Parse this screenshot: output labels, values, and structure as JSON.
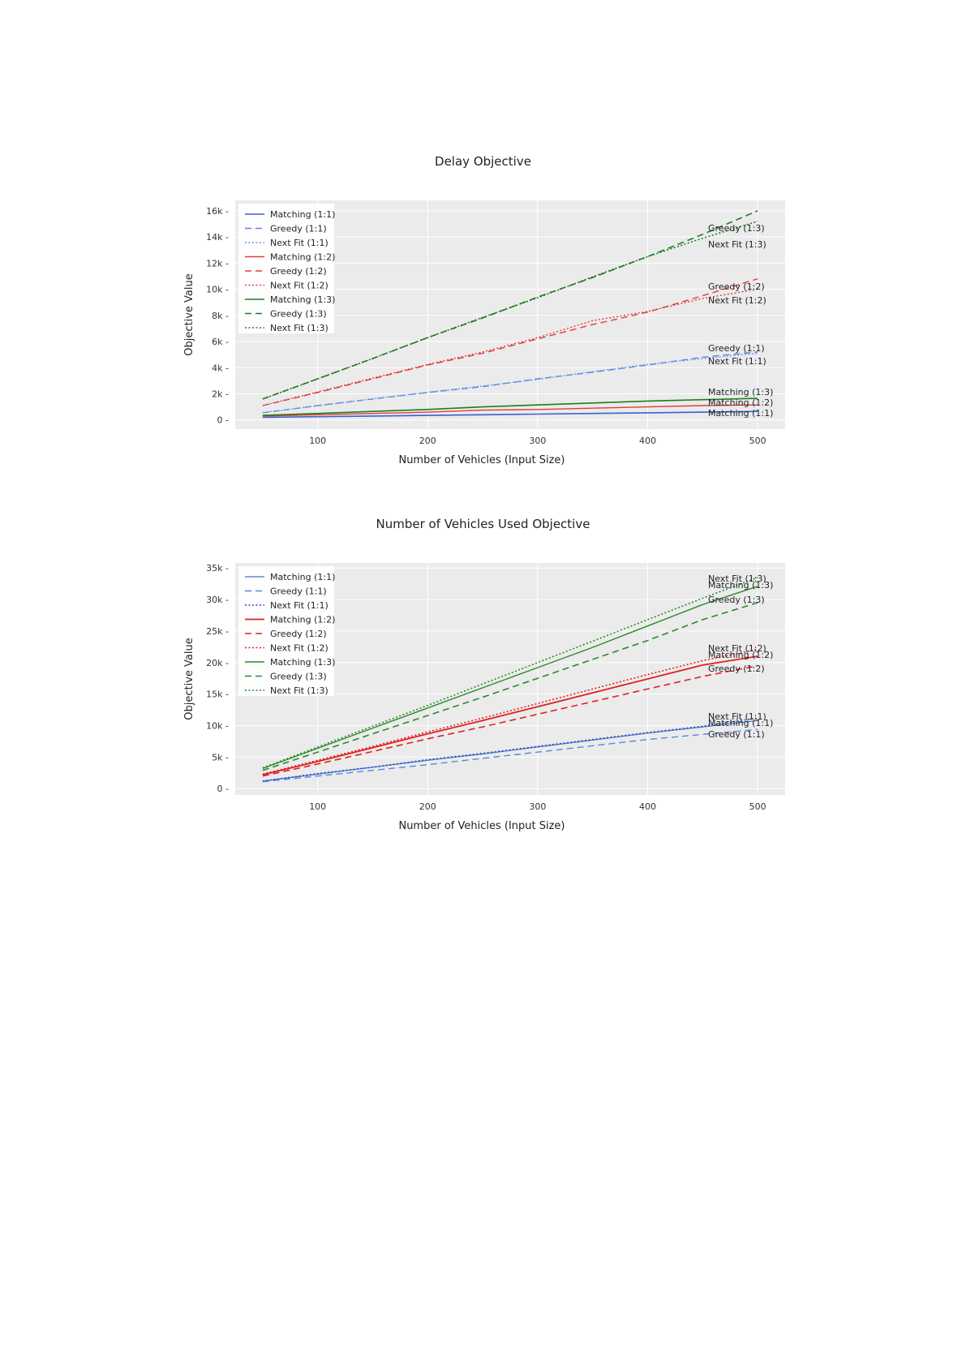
{
  "chart_data": [
    {
      "type": "line",
      "title": "Delay Objective",
      "xlabel": "Number of Vehicles (Input Size)",
      "ylabel": "Objective Value",
      "xlim": [
        25,
        525
      ],
      "ylim": [
        -700,
        16800
      ],
      "xticks": [
        100,
        200,
        300,
        400,
        500
      ],
      "yticks": [
        0,
        2000,
        4000,
        6000,
        8000,
        10000,
        12000,
        14000,
        16000
      ],
      "ytick_labels": [
        "0",
        "2k",
        "4k",
        "6k",
        "8k",
        "10k",
        "12k",
        "14k",
        "16k"
      ],
      "grid": true,
      "legend": "top-left",
      "x": [
        50,
        100,
        150,
        200,
        250,
        300,
        350,
        400,
        450,
        500
      ],
      "series": [
        {
          "name": "Matching (1:1)",
          "color": "#3a5fd6",
          "dash": "solid",
          "width": 1.6,
          "end_label": "Matching (1:1)",
          "values": [
            200,
            250,
            300,
            350,
            400,
            450,
            500,
            550,
            600,
            650
          ]
        },
        {
          "name": "Greedy (1:1)",
          "color": "#5b86e5",
          "dash": "dashed",
          "width": 1.4,
          "end_label": "Greedy (1:1)",
          "values": [
            550,
            1100,
            1600,
            2100,
            2550,
            3150,
            3650,
            4200,
            4800,
            5200
          ]
        },
        {
          "name": "Next Fit (1:1)",
          "color": "#6f94e8",
          "dash": "dotted",
          "width": 1.4,
          "end_label": "Next Fit (1:1)",
          "values": [
            560,
            1080,
            1620,
            2120,
            2600,
            3100,
            3700,
            4250,
            4700,
            5100
          ]
        },
        {
          "name": "Matching (1:2)",
          "color": "#e33b3b",
          "dash": "solid",
          "width": 1.4,
          "end_label": "Matching (1:2)",
          "values": [
            300,
            400,
            500,
            600,
            750,
            800,
            900,
            1000,
            1100,
            1150
          ]
        },
        {
          "name": "Greedy (1:2)",
          "color": "#e33b3b",
          "dash": "dashed",
          "width": 1.4,
          "end_label": "Greedy (1:2)",
          "values": [
            1100,
            2100,
            3150,
            4200,
            5100,
            6200,
            7300,
            8250,
            9500,
            10800
          ]
        },
        {
          "name": "Next Fit (1:2)",
          "color": "#e33b3b",
          "dash": "dotted",
          "width": 1.4,
          "end_label": "Next Fit (1:2)",
          "values": [
            1100,
            2150,
            3200,
            4250,
            5200,
            6300,
            7600,
            8300,
            9300,
            10000
          ]
        },
        {
          "name": "Matching (1:3)",
          "color": "#1e7d1e",
          "dash": "solid",
          "width": 1.6,
          "end_label": "Matching (1:3)",
          "values": [
            350,
            500,
            650,
            800,
            1000,
            1150,
            1300,
            1450,
            1550,
            1650
          ]
        },
        {
          "name": "Greedy (1:3)",
          "color": "#1e7d1e",
          "dash": "dashed",
          "width": 1.6,
          "end_label": "Greedy (1:3)",
          "values": [
            1600,
            3150,
            4700,
            6300,
            7800,
            9400,
            10900,
            12500,
            14200,
            16000
          ]
        },
        {
          "name": "Next Fit (1:3)",
          "color": "#1e7d1e",
          "dash": "dotted",
          "width": 1.6,
          "end_label": "Next Fit (1:3)",
          "values": [
            1600,
            3150,
            4700,
            6300,
            7850,
            9350,
            10950,
            12500,
            13900,
            15200
          ]
        }
      ]
    },
    {
      "type": "line",
      "title": "Number of Vehicles Used Objective",
      "xlabel": "Number of Vehicles (Input Size)",
      "ylabel": "Objective Value",
      "xlim": [
        25,
        525
      ],
      "ylim": [
        -1000,
        35800
      ],
      "xticks": [
        100,
        200,
        300,
        400,
        500
      ],
      "yticks": [
        0,
        5000,
        10000,
        15000,
        20000,
        25000,
        30000,
        35000
      ],
      "ytick_labels": [
        "0",
        "5k",
        "10k",
        "15k",
        "20k",
        "25k",
        "30k",
        "35k"
      ],
      "grid": true,
      "legend": "top-left",
      "x": [
        50,
        100,
        150,
        200,
        250,
        300,
        350,
        400,
        450,
        500
      ],
      "series": [
        {
          "name": "Matching (1:1)",
          "color": "#4a72c4",
          "dash": "solid",
          "width": 1.2,
          "end_label": "Matching (1:1)",
          "values": [
            1200,
            2300,
            3400,
            4500,
            5500,
            6600,
            7700,
            8800,
            9800,
            10800
          ]
        },
        {
          "name": "Greedy (1:1)",
          "color": "#5b86e5",
          "dash": "dashed",
          "width": 1.4,
          "end_label": "Greedy (1:1)",
          "values": [
            1100,
            2000,
            2900,
            3800,
            4800,
            5800,
            6800,
            7800,
            8600,
            9400
          ]
        },
        {
          "name": "Next Fit (1:1)",
          "color": "#2b4fd0",
          "dash": "dotted",
          "width": 1.6,
          "end_label": "Next Fit (1:1)",
          "values": [
            1200,
            2400,
            3400,
            4600,
            5600,
            6700,
            7800,
            8900,
            9900,
            11200
          ]
        },
        {
          "name": "Matching (1:2)",
          "color": "#e02020",
          "dash": "solid",
          "width": 1.8,
          "end_label": "Matching (1:2)",
          "values": [
            2200,
            4300,
            6500,
            8700,
            10800,
            13000,
            15200,
            17400,
            19600,
            21000
          ]
        },
        {
          "name": "Greedy (1:2)",
          "color": "#e02020",
          "dash": "dashed",
          "width": 1.6,
          "end_label": "Greedy (1:2)",
          "values": [
            2000,
            3900,
            5900,
            7900,
            9800,
            11800,
            13800,
            15800,
            17800,
            19500
          ]
        },
        {
          "name": "Next Fit (1:2)",
          "color": "#e02020",
          "dash": "dotted",
          "width": 1.6,
          "end_label": "Next Fit (1:2)",
          "values": [
            2300,
            4500,
            6700,
            9000,
            11200,
            13500,
            15800,
            18100,
            20300,
            22100
          ]
        },
        {
          "name": "Matching (1:3)",
          "color": "#2a8a2a",
          "dash": "solid",
          "width": 1.4,
          "end_label": "Matching (1:3)",
          "values": [
            3200,
            6400,
            9600,
            12800,
            16000,
            19200,
            22400,
            25800,
            29200,
            32100
          ]
        },
        {
          "name": "Greedy (1:3)",
          "color": "#2a8a2a",
          "dash": "dashed",
          "width": 1.6,
          "end_label": "Greedy (1:3)",
          "values": [
            2900,
            5800,
            8700,
            11600,
            14500,
            17500,
            20500,
            23500,
            26800,
            29500
          ]
        },
        {
          "name": "Next Fit (1:3)",
          "color": "#2a8a2a",
          "dash": "dotted",
          "width": 1.6,
          "end_label": "Next Fit (1:3)",
          "values": [
            3300,
            6600,
            9900,
            13200,
            16600,
            20000,
            23400,
            26800,
            30200,
            33500
          ]
        }
      ]
    }
  ]
}
